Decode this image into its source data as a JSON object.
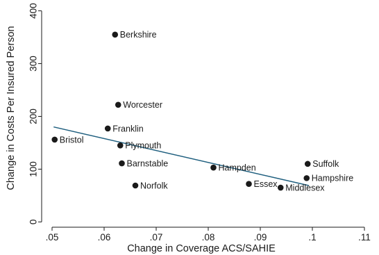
{
  "chart_data": {
    "type": "scatter",
    "xlabel": "Change in Coverage ACS/SAHIE",
    "ylabel": "Change in Costs Per Insured Person",
    "xlim": [
      0.048,
      0.112
    ],
    "ylim": [
      -10,
      410
    ],
    "xticks": [
      0.05,
      0.06,
      0.07,
      0.08,
      0.09,
      0.1,
      0.11
    ],
    "xtick_labels": [
      ".05",
      ".06",
      ".07",
      ".08",
      ".09",
      ".1",
      ".11"
    ],
    "yticks": [
      0,
      100,
      200,
      300,
      400
    ],
    "ytick_labels": [
      "0",
      "100",
      "200",
      "300",
      "400"
    ],
    "grid": false,
    "legend": "none",
    "points": [
      {
        "label": "Berkshire",
        "x": 0.0621,
        "y": 355
      },
      {
        "label": "Worcester",
        "x": 0.0627,
        "y": 222
      },
      {
        "label": "Franklin",
        "x": 0.0607,
        "y": 177
      },
      {
        "label": "Bristol",
        "x": 0.0505,
        "y": 156
      },
      {
        "label": "Plymouth",
        "x": 0.0631,
        "y": 145
      },
      {
        "label": "Barnstable",
        "x": 0.0634,
        "y": 111
      },
      {
        "label": "Norfolk",
        "x": 0.066,
        "y": 69
      },
      {
        "label": "Hampden",
        "x": 0.081,
        "y": 103
      },
      {
        "label": "Essex",
        "x": 0.0878,
        "y": 72
      },
      {
        "label": "Middlesex",
        "x": 0.0939,
        "y": 65
      },
      {
        "label": "Suffolk",
        "x": 0.0991,
        "y": 110
      },
      {
        "label": "Hampshire",
        "x": 0.0989,
        "y": 83
      }
    ],
    "fit_line": {
      "x": [
        0.0503,
        0.0993
      ],
      "y": [
        180,
        69
      ]
    },
    "colors": {
      "points": "#1a1a1a",
      "fit_line": "#1f5f7f",
      "axis": "#1a1a1a"
    }
  }
}
